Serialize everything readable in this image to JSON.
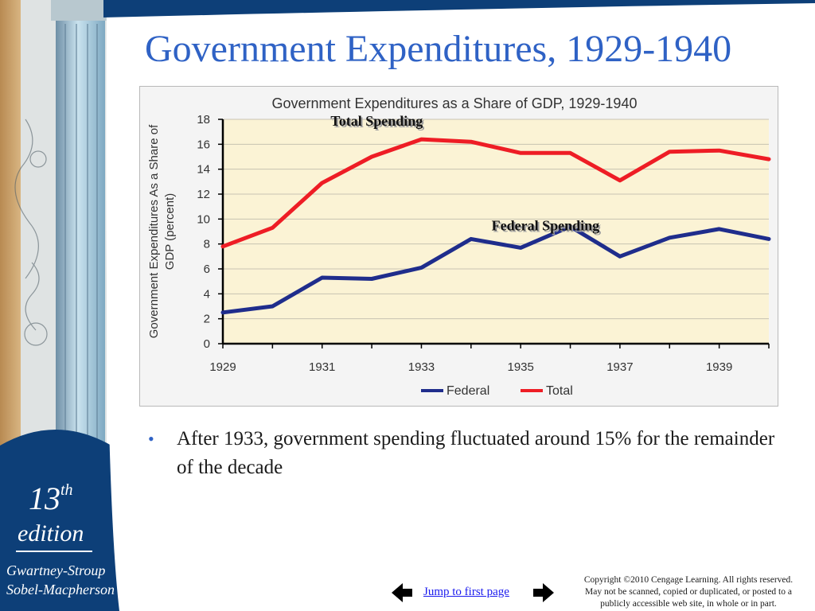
{
  "slide": {
    "title": "Government Expenditures, 1929-1940",
    "bullet": "After 1933, government spending fluctuated around 15% for the remainder of the decade"
  },
  "sidebar": {
    "edition_number": "13",
    "edition_suffix": "th",
    "edition_word": "edition",
    "author_line_1": "Gwartney-Stroup",
    "author_line_2": "Sobel-Macpherson",
    "colors": {
      "navy": "#0d3f78",
      "tan": "#c9a06a",
      "column": "#9fc6dc"
    }
  },
  "footer": {
    "jump_link": "Jump to first page",
    "copyright_lines": [
      "Copyright ©2010 Cengage Learning. All rights reserved.",
      "May not be scanned, copied or duplicated, or posted to a",
      "publicly accessible web site, in whole or in part."
    ],
    "prev_icon": "left-arrow-icon",
    "next_icon": "right-arrow-icon"
  },
  "chart_data": {
    "type": "line",
    "title": "Government Expenditures as a Share of GDP, 1929-1940",
    "ylabel": "Government Expenditures As a Share of GDP (percent)",
    "xlabel": "",
    "x": [
      1929,
      1930,
      1931,
      1932,
      1933,
      1934,
      1935,
      1936,
      1937,
      1938,
      1939,
      1940
    ],
    "x_tick_labels": [
      "1929",
      "1931",
      "1933",
      "1935",
      "1937",
      "1939"
    ],
    "ylim": [
      0,
      18
    ],
    "y_ticks": [
      0,
      2,
      4,
      6,
      8,
      10,
      12,
      14,
      16,
      18
    ],
    "grid": "horizontal",
    "plot_background": "#fbf3d5",
    "legend_position": "bottom",
    "series": [
      {
        "name": "Federal",
        "color": "#1f2d8c",
        "values": [
          2.5,
          3.0,
          5.3,
          5.2,
          6.1,
          8.4,
          7.7,
          9.4,
          7.0,
          8.5,
          9.2,
          8.4
        ]
      },
      {
        "name": "Total",
        "color": "#ee1d25",
        "values": [
          7.8,
          9.3,
          12.9,
          15.0,
          16.4,
          16.2,
          15.3,
          15.3,
          13.1,
          15.4,
          15.5,
          14.8
        ]
      }
    ],
    "annotations": [
      {
        "text": "Total Spending",
        "series": "Total",
        "at_x": 1932.1,
        "at_y": 17.5
      },
      {
        "text": "Federal Spending",
        "series": "Federal",
        "at_x": 1935.5,
        "at_y": 9.1
      }
    ]
  }
}
